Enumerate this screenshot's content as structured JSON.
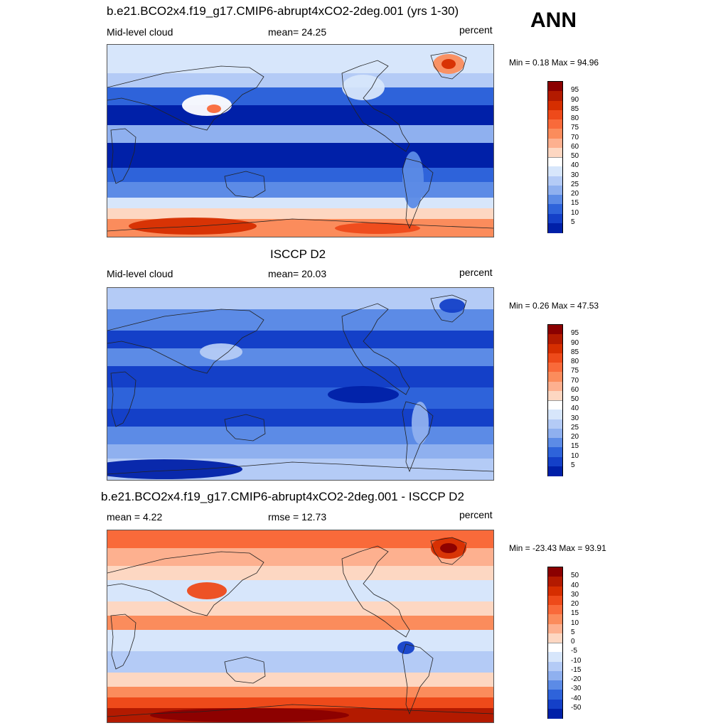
{
  "season": "ANN",
  "panels": [
    {
      "title": "b.e21.BCO2x4.f19_g17.CMIP6-abrupt4xCO2-2deg.001 (yrs 1-30)",
      "left_label": "Mid-level cloud",
      "center_label": "mean=  24.25",
      "right_label": "percent",
      "minmax": "Min =   0.18 Max =  94.96",
      "field": "model",
      "colorbar": {
        "labels": [
          "95",
          "90",
          "85",
          "80",
          "75",
          "70",
          "60",
          "50",
          "40",
          "30",
          "25",
          "20",
          "15",
          "10",
          "5"
        ],
        "colors": [
          "#8b0000",
          "#b31a00",
          "#d62e00",
          "#ee4a1a",
          "#f96a3a",
          "#fb8c5c",
          "#fdb08f",
          "#fdd7c2",
          "#ffffff",
          "#d7e6fb",
          "#b4cbf6",
          "#8fb0ef",
          "#5c8be6",
          "#2e63da",
          "#1440c8",
          "#0020a8"
        ]
      }
    },
    {
      "title": "ISCCP D2",
      "left_label": "Mid-level cloud",
      "center_label": "mean=  20.03",
      "right_label": "percent",
      "minmax": "Min =   0.26 Max =  47.53",
      "field": "obs",
      "colorbar": {
        "labels": [
          "95",
          "90",
          "85",
          "80",
          "75",
          "70",
          "60",
          "50",
          "40",
          "30",
          "25",
          "20",
          "15",
          "10",
          "5"
        ],
        "colors": [
          "#8b0000",
          "#b31a00",
          "#d62e00",
          "#ee4a1a",
          "#f96a3a",
          "#fb8c5c",
          "#fdb08f",
          "#fdd7c2",
          "#ffffff",
          "#d7e6fb",
          "#b4cbf6",
          "#8fb0ef",
          "#5c8be6",
          "#2e63da",
          "#1440c8",
          "#0020a8"
        ]
      }
    },
    {
      "title": "b.e21.BCO2x4.f19_g17.CMIP6-abrupt4xCO2-2deg.001 - ISCCP D2",
      "left_label": "mean =   4.22",
      "center_label": "rmse =  12.73",
      "right_label": "percent",
      "minmax": "Min = -23.43 Max =  93.91",
      "field": "diff",
      "colorbar": {
        "labels": [
          "50",
          "40",
          "30",
          "20",
          "15",
          "10",
          "5",
          "0",
          "-5",
          "-10",
          "-15",
          "-20",
          "-30",
          "-40",
          "-50"
        ],
        "colors": [
          "#8b0000",
          "#b31a00",
          "#d62e00",
          "#ee4a1a",
          "#f96a3a",
          "#fb8c5c",
          "#fdb08f",
          "#fdd7c2",
          "#ffffff",
          "#d7e6fb",
          "#b4cbf6",
          "#8fb0ef",
          "#5c8be6",
          "#2e63da",
          "#1440c8",
          "#0020a8"
        ]
      }
    }
  ]
}
